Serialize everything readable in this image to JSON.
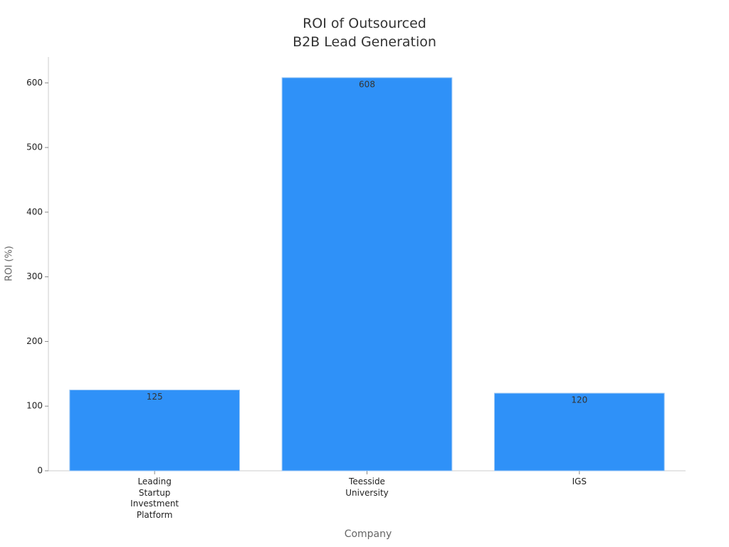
{
  "chart_data": {
    "type": "bar",
    "title": "ROI of Outsourced\nB2B Lead Generation",
    "x_label": "Company",
    "y_label": "ROI (%)",
    "categories": [
      "Leading\nStartup\nInvestment\nPlatform",
      "Teesside\nUniversity",
      "IGS"
    ],
    "values": [
      125,
      608,
      120
    ],
    "color": "#2f91f8",
    "ylim": [
      0,
      640
    ],
    "yticks": [
      0,
      100,
      200,
      300,
      400,
      500,
      600
    ]
  }
}
